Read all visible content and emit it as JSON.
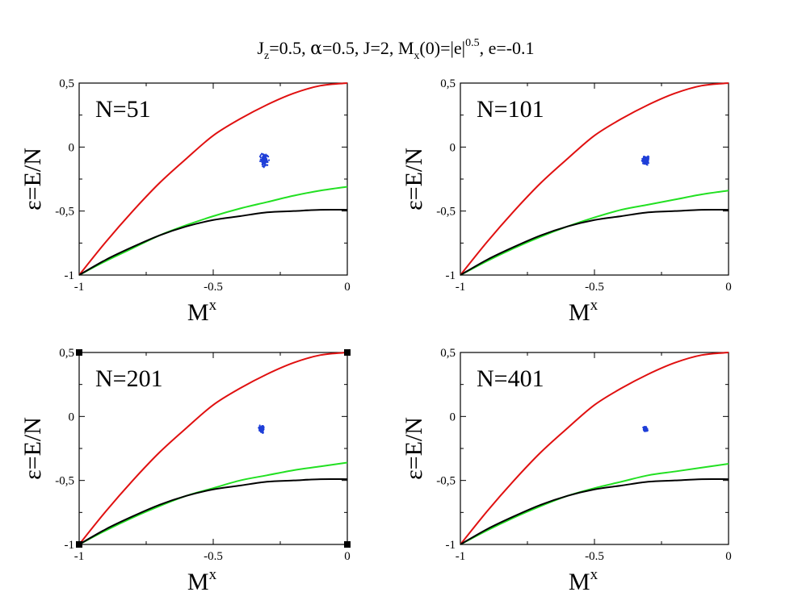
{
  "figure_title": {
    "p1": "J",
    "s1": "z",
    "p2": "=0.5, ",
    "alpha": "α",
    "p3": "=0.5, J=2, M",
    "s2": "x",
    "p4": "(0)=|e|",
    "sup": "0.5",
    "p5": ", e=-0.1"
  },
  "colors": {
    "red": "#e01010",
    "green": "#22e022",
    "black": "#000000",
    "blue": "#1f3fd8"
  },
  "chart_data": [
    {
      "type": "line",
      "panel_label": "N=51",
      "ylabel": "ε=E/N",
      "xlabel": "M",
      "xlabel_sup": "x",
      "xlim": [
        -1,
        0
      ],
      "ylim": [
        -1,
        0.5
      ],
      "xticks": [
        {
          "v": -1,
          "label": "-1"
        },
        {
          "v": -0.5,
          "label": "-0.5"
        },
        {
          "v": 0,
          "label": "0"
        }
      ],
      "yticks": [
        {
          "v": -1,
          "label": "-1"
        },
        {
          "v": -0.5,
          "label": "-0,5"
        },
        {
          "v": 0,
          "label": "0"
        },
        {
          "v": 0.5,
          "label": "0,5"
        }
      ],
      "x": [
        -1,
        -0.9,
        -0.8,
        -0.7,
        -0.6,
        -0.5,
        -0.4,
        -0.3,
        -0.2,
        -0.1,
        0
      ],
      "series": [
        {
          "color": "red",
          "values": [
            -1,
            -0.74,
            -0.5,
            -0.28,
            -0.09,
            0.09,
            0.22,
            0.33,
            0.42,
            0.48,
            0.5
          ]
        },
        {
          "color": "green",
          "values": [
            -1,
            -0.89,
            -0.79,
            -0.69,
            -0.61,
            -0.54,
            -0.48,
            -0.43,
            -0.38,
            -0.34,
            -0.31
          ]
        },
        {
          "color": "black",
          "values": [
            -1,
            -0.88,
            -0.78,
            -0.69,
            -0.62,
            -0.57,
            -0.54,
            -0.51,
            -0.5,
            -0.49,
            -0.49
          ]
        }
      ],
      "scatter": {
        "color": "blue",
        "center": [
          -0.31,
          -0.1
        ],
        "spread": [
          0.04,
          0.12
        ]
      }
    },
    {
      "type": "line",
      "panel_label": "N=101",
      "ylabel": "ε=E/N",
      "xlabel": "M",
      "xlabel_sup": "x",
      "xlim": [
        -1,
        0
      ],
      "ylim": [
        -1,
        0.5
      ],
      "xticks": [
        {
          "v": -1,
          "label": "-1"
        },
        {
          "v": -0.5,
          "label": "-0.5"
        },
        {
          "v": 0,
          "label": "0"
        }
      ],
      "yticks": [
        {
          "v": -1,
          "label": "-1"
        },
        {
          "v": -0.5,
          "label": "-0,5"
        },
        {
          "v": 0,
          "label": "0"
        },
        {
          "v": 0.5,
          "label": "0,5"
        }
      ],
      "x": [
        -1,
        -0.9,
        -0.8,
        -0.7,
        -0.6,
        -0.5,
        -0.4,
        -0.3,
        -0.2,
        -0.1,
        0
      ],
      "series": [
        {
          "color": "red",
          "values": [
            -1,
            -0.74,
            -0.5,
            -0.28,
            -0.09,
            0.09,
            0.22,
            0.33,
            0.42,
            0.48,
            0.5
          ]
        },
        {
          "color": "green",
          "values": [
            -1,
            -0.89,
            -0.79,
            -0.7,
            -0.62,
            -0.55,
            -0.49,
            -0.45,
            -0.41,
            -0.37,
            -0.34
          ]
        },
        {
          "color": "black",
          "values": [
            -1,
            -0.88,
            -0.78,
            -0.69,
            -0.62,
            -0.57,
            -0.54,
            -0.51,
            -0.5,
            -0.49,
            -0.49
          ]
        }
      ],
      "scatter": {
        "color": "blue",
        "center": [
          -0.31,
          -0.1
        ],
        "spread": [
          0.03,
          0.09
        ]
      }
    },
    {
      "type": "line",
      "panel_label": "N=201",
      "ylabel": "ε=E/N",
      "xlabel": "M",
      "xlabel_sup": "x",
      "xlim": [
        -1,
        0
      ],
      "ylim": [
        -1,
        0.5
      ],
      "xticks": [
        {
          "v": -1,
          "label": "-1"
        },
        {
          "v": -0.5,
          "label": "-0.5"
        },
        {
          "v": 0,
          "label": "0"
        }
      ],
      "yticks": [
        {
          "v": -1,
          "label": "-1"
        },
        {
          "v": -0.5,
          "label": "-0,5"
        },
        {
          "v": 0,
          "label": "0"
        },
        {
          "v": 0.5,
          "label": "0,5"
        }
      ],
      "x": [
        -1,
        -0.9,
        -0.8,
        -0.7,
        -0.6,
        -0.5,
        -0.4,
        -0.3,
        -0.2,
        -0.1,
        0
      ],
      "series": [
        {
          "color": "red",
          "values": [
            -1,
            -0.74,
            -0.5,
            -0.28,
            -0.09,
            0.09,
            0.22,
            0.33,
            0.42,
            0.48,
            0.5
          ]
        },
        {
          "color": "green",
          "values": [
            -1,
            -0.89,
            -0.79,
            -0.7,
            -0.62,
            -0.56,
            -0.5,
            -0.46,
            -0.42,
            -0.39,
            -0.36
          ]
        },
        {
          "color": "black",
          "values": [
            -1,
            -0.88,
            -0.78,
            -0.69,
            -0.62,
            -0.57,
            -0.54,
            -0.51,
            -0.5,
            -0.49,
            -0.49
          ]
        }
      ],
      "scatter": {
        "color": "blue",
        "center": [
          -0.32,
          -0.1
        ],
        "spread": [
          0.025,
          0.07
        ]
      }
    },
    {
      "type": "line",
      "panel_label": "N=401",
      "ylabel": "ε=E/N",
      "xlabel": "M",
      "xlabel_sup": "x",
      "xlim": [
        -1,
        0
      ],
      "ylim": [
        -1,
        0.5
      ],
      "xticks": [
        {
          "v": -1,
          "label": "-1"
        },
        {
          "v": -0.5,
          "label": "-0.5"
        },
        {
          "v": 0,
          "label": "0"
        }
      ],
      "yticks": [
        {
          "v": -1,
          "label": "-1"
        },
        {
          "v": -0.5,
          "label": "-0,5"
        },
        {
          "v": 0,
          "label": "0"
        },
        {
          "v": 0.5,
          "label": "0,5"
        }
      ],
      "x": [
        -1,
        -0.9,
        -0.8,
        -0.7,
        -0.6,
        -0.5,
        -0.4,
        -0.3,
        -0.2,
        -0.1,
        0
      ],
      "series": [
        {
          "color": "red",
          "values": [
            -1,
            -0.74,
            -0.5,
            -0.28,
            -0.09,
            0.09,
            0.22,
            0.33,
            0.42,
            0.48,
            0.5
          ]
        },
        {
          "color": "green",
          "values": [
            -1,
            -0.89,
            -0.79,
            -0.7,
            -0.62,
            -0.56,
            -0.51,
            -0.46,
            -0.43,
            -0.4,
            -0.37
          ]
        },
        {
          "color": "black",
          "values": [
            -1,
            -0.88,
            -0.78,
            -0.69,
            -0.62,
            -0.57,
            -0.54,
            -0.51,
            -0.5,
            -0.49,
            -0.49
          ]
        }
      ],
      "scatter": {
        "color": "blue",
        "center": [
          -0.31,
          -0.1
        ],
        "spread": [
          0.02,
          0.05
        ]
      }
    }
  ]
}
